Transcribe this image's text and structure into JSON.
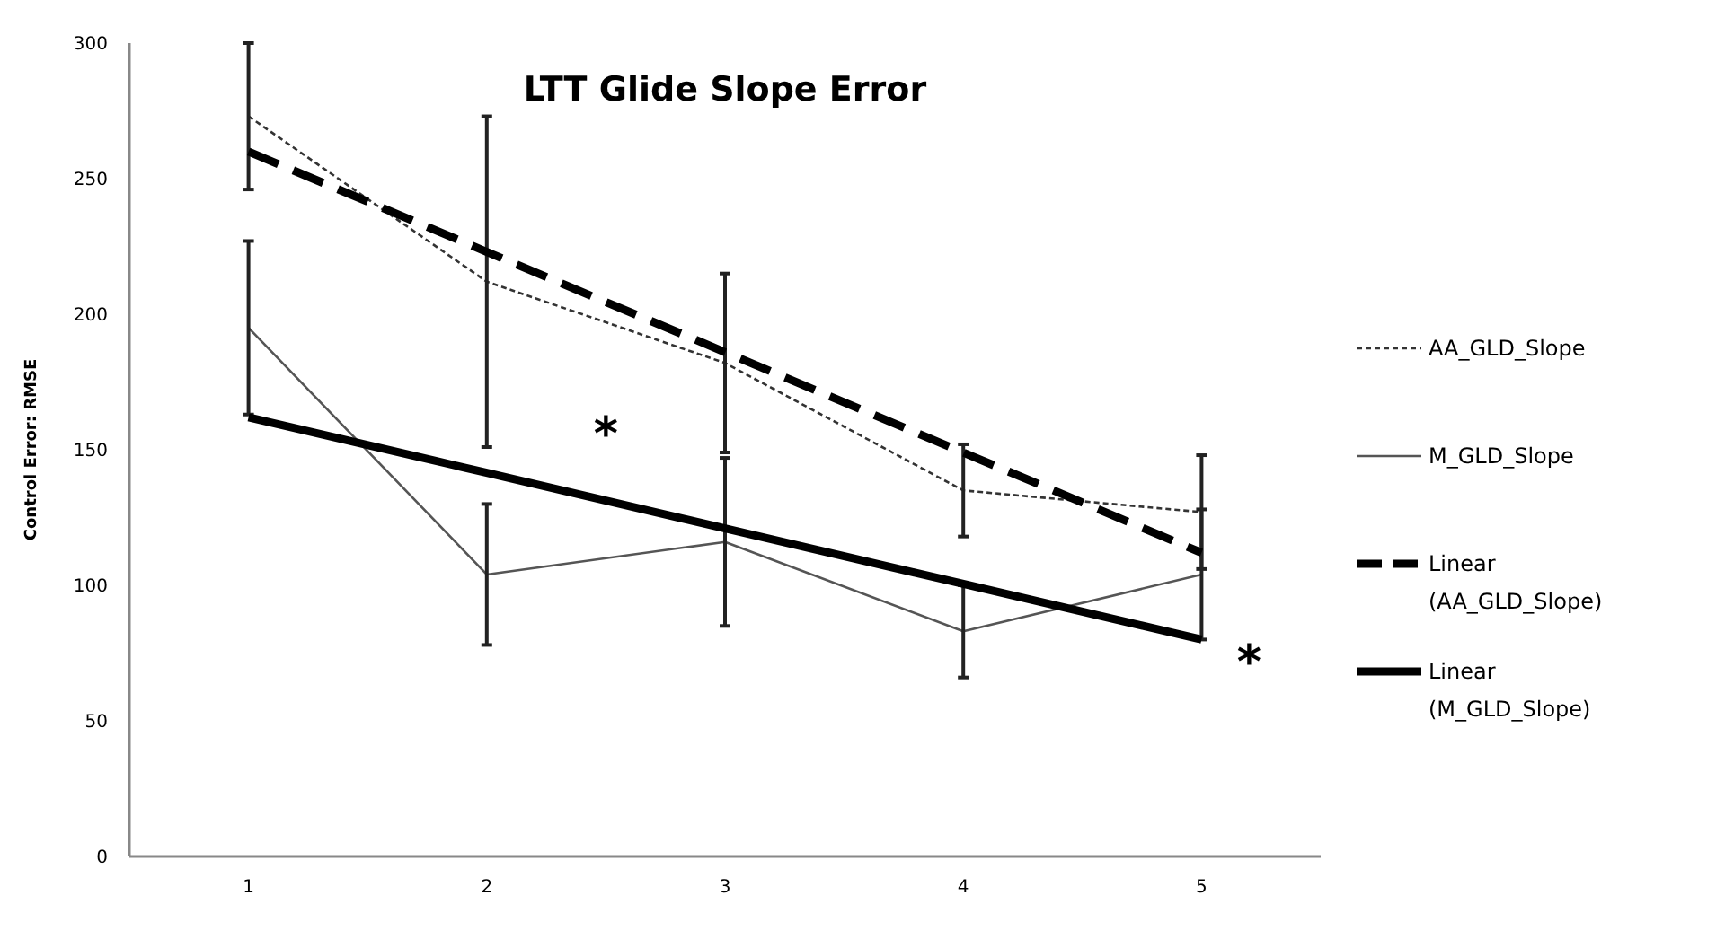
{
  "chart_data": {
    "type": "line",
    "title": "LTT Glide Slope  Error",
    "ylabel": "Control Error: RMSE",
    "x": [
      1,
      2,
      3,
      4,
      5
    ],
    "xlim": [
      0.5,
      5.5
    ],
    "xticks": [
      1,
      2,
      3,
      4,
      5
    ],
    "ylim": [
      0,
      300
    ],
    "yticks": [
      0,
      50,
      100,
      150,
      200,
      250,
      300
    ],
    "grid": false,
    "legend": "right",
    "marker": "none",
    "series": [
      {
        "name": "AA_GLD_Slope",
        "color": "#333333",
        "line_style": "dotted",
        "values": [
          273,
          212,
          182,
          135,
          127
        ],
        "errors": [
          27,
          61,
          33,
          17,
          21
        ]
      },
      {
        "name": "M_GLD_Slope",
        "color": "#555555",
        "line_style": "solid",
        "values": [
          195,
          104,
          116,
          83,
          104
        ],
        "errors": [
          32,
          26,
          31,
          17,
          24
        ]
      },
      {
        "name": "Linear (AA_GLD_Slope)",
        "color": "#000000",
        "line_style": "dashed",
        "values": [
          260,
          223,
          186,
          149,
          112
        ]
      },
      {
        "name": "Linear (M_GLD_Slope)",
        "color": "#000000",
        "line_style": "solid",
        "values": [
          162,
          141.5,
          121,
          100.5,
          80
        ]
      }
    ],
    "annotations": [
      "*",
      "*"
    ]
  }
}
